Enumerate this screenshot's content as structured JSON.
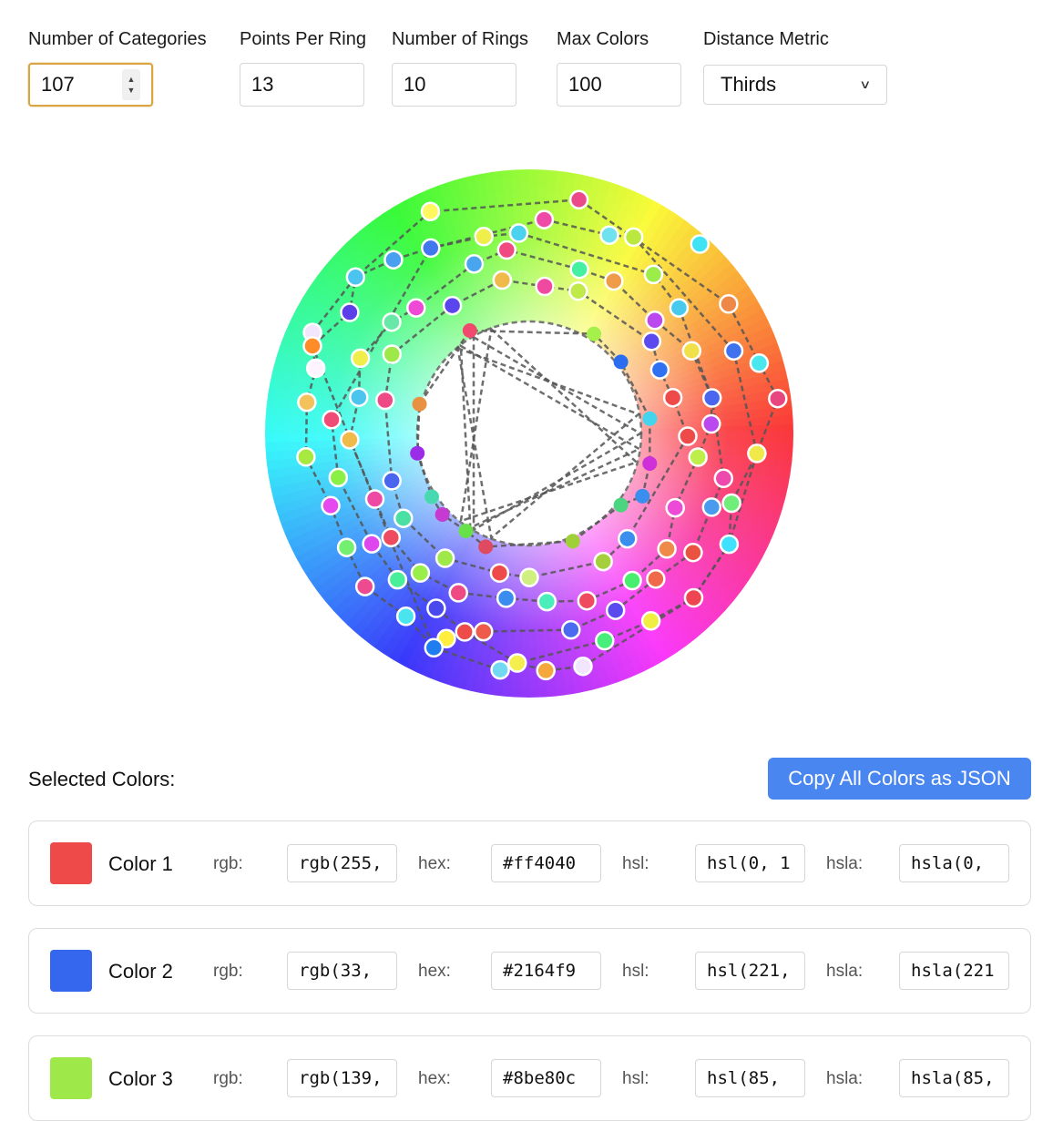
{
  "controls": {
    "categories": {
      "label": "Number of Categories",
      "value": "107"
    },
    "points_per_ring": {
      "label": "Points Per Ring",
      "value": "13"
    },
    "rings": {
      "label": "Number of Rings",
      "value": "10"
    },
    "max_colors": {
      "label": "Max Colors",
      "value": "100"
    },
    "distance_metric": {
      "label": "Distance Metric",
      "selected": "Thirds"
    }
  },
  "wheel": {
    "points": [
      {
        "hue": 283,
        "color": "#f2e6ff",
        "r": 0.905
      },
      {
        "hue": 290,
        "color": "#47ee7a",
        "r": 0.835
      },
      {
        "hue": 324,
        "color": "#eb5341",
        "r": 0.767
      },
      {
        "hue": 341,
        "color": "#6fee7a",
        "r": 0.81
      },
      {
        "hue": 8,
        "color": "#e7477e",
        "r": 0.95
      },
      {
        "hue": 22,
        "color": "#4072ee",
        "r": 0.835
      },
      {
        "hue": 48,
        "color": "#40e3f4",
        "r": 0.965
      },
      {
        "hue": 62,
        "color": "#bbe83f",
        "r": 0.842
      },
      {
        "hue": 78,
        "color": "#eb4a8a",
        "r": 0.905
      },
      {
        "hue": 114,
        "color": "#fff85f",
        "r": 0.92
      },
      {
        "hue": 128,
        "color": "#4aa0f0",
        "r": 0.835
      },
      {
        "hue": 155,
        "color": "#f2e6ff",
        "r": 0.905
      },
      {
        "hue": 248,
        "color": "#ffee40",
        "r": 0.838
      },
      {
        "hue": 252,
        "color": "#ee4b4b",
        "r": 0.79
      },
      {
        "hue": 246,
        "color": "#1f7df0",
        "r": 0.888
      },
      {
        "hue": 236,
        "color": "#49e4ee",
        "r": 0.835
      },
      {
        "hue": 223,
        "color": "#ee4a8f",
        "r": 0.85
      },
      {
        "hue": 212,
        "color": "#74f070",
        "r": 0.815
      },
      {
        "hue": 200,
        "color": "#e64aee",
        "r": 0.8
      },
      {
        "hue": 186,
        "color": "#a7e841",
        "r": 0.85
      },
      {
        "hue": 172,
        "color": "#f4c25a",
        "r": 0.85
      },
      {
        "hue": 163,
        "color": "#fff3ff",
        "r": 0.845
      },
      {
        "hue": 158,
        "color": "#ff8c28",
        "r": 0.885
      },
      {
        "hue": 146,
        "color": "#5b40e9",
        "r": 0.82
      },
      {
        "hue": 138,
        "color": "#4bc4f0",
        "r": 0.885
      },
      {
        "hue": 274,
        "color": "#f4a83c",
        "r": 0.9
      },
      {
        "hue": 267,
        "color": "#f4ee4e",
        "r": 0.87
      },
      {
        "hue": 263,
        "color": "#72d9f2",
        "r": 0.902
      },
      {
        "hue": 303,
        "color": "#f0ee40",
        "r": 0.846
      },
      {
        "hue": 315,
        "color": "#ee4552",
        "r": 0.88
      },
      {
        "hue": 331,
        "color": "#40e0ff",
        "r": 0.865
      },
      {
        "hue": 355,
        "color": "#f0e94a",
        "r": 0.865
      },
      {
        "hue": 17,
        "color": "#4ae8ee",
        "r": 0.91
      },
      {
        "hue": 33,
        "color": "#ee8848",
        "r": 0.9
      },
      {
        "hue": 40,
        "color": "#48c9ee",
        "r": 0.74
      },
      {
        "hue": 52,
        "color": "#9ded4a",
        "r": 0.764
      },
      {
        "hue": 68,
        "color": "#6ee2ee",
        "r": 0.81
      },
      {
        "hue": 86,
        "color": "#f04aa8",
        "r": 0.812
      },
      {
        "hue": 93,
        "color": "#4ad2ee",
        "r": 0.76
      },
      {
        "hue": 103,
        "color": "#f0ee4a",
        "r": 0.765
      },
      {
        "hue": 118,
        "color": "#4278ee",
        "r": 0.795
      },
      {
        "hue": 176,
        "color": "#f04a77",
        "r": 0.75
      },
      {
        "hue": 193,
        "color": "#8af046",
        "r": 0.742
      },
      {
        "hue": 215,
        "color": "#de47ee",
        "r": 0.728
      },
      {
        "hue": 228,
        "color": "#49ee98",
        "r": 0.745
      },
      {
        "hue": 242,
        "color": "#4a49ee",
        "r": 0.75
      },
      {
        "hue": 257,
        "color": "#ee5b4a",
        "r": 0.77
      },
      {
        "hue": 282,
        "color": "#4a6af0",
        "r": 0.76
      },
      {
        "hue": 296,
        "color": "#5b4bee",
        "r": 0.745
      },
      {
        "hue": 311,
        "color": "#ee6a4a",
        "r": 0.73
      },
      {
        "hue": 338,
        "color": "#4a9bee",
        "r": 0.745
      },
      {
        "hue": 347,
        "color": "#ee4aad",
        "r": 0.755
      },
      {
        "hue": 3,
        "color": "#bb47ee",
        "r": 0.69
      },
      {
        "hue": 11,
        "color": "#4a66ee",
        "r": 0.705
      },
      {
        "hue": 27,
        "color": "#f0e04a",
        "r": 0.69
      },
      {
        "hue": 42,
        "color": "#bb47ee",
        "r": 0.64
      },
      {
        "hue": 61,
        "color": "#ee9b4a",
        "r": 0.66
      },
      {
        "hue": 73,
        "color": "#45f0a3",
        "r": 0.65
      },
      {
        "hue": 97,
        "color": "#f04a83",
        "r": 0.7
      },
      {
        "hue": 108,
        "color": "#49a5ee",
        "r": 0.675
      },
      {
        "hue": 132,
        "color": "#ee4ad6",
        "r": 0.64
      },
      {
        "hue": 141,
        "color": "#67e8a7",
        "r": 0.67
      },
      {
        "hue": 156,
        "color": "#f0ee4a",
        "r": 0.7
      },
      {
        "hue": 168,
        "color": "#4bc4ee",
        "r": 0.66
      },
      {
        "hue": 182,
        "color": "#f0ba4a",
        "r": 0.68
      },
      {
        "hue": 203,
        "color": "#ee4aa3",
        "r": 0.635
      },
      {
        "hue": 217,
        "color": "#ee4a60",
        "r": 0.655
      },
      {
        "hue": 232,
        "color": "#9aee4a",
        "r": 0.67
      },
      {
        "hue": 246,
        "color": "#ee4a84",
        "r": 0.66
      },
      {
        "hue": 262,
        "color": "#3a8dee",
        "r": 0.63
      },
      {
        "hue": 276,
        "color": "#49eeba",
        "r": 0.64
      },
      {
        "hue": 289,
        "color": "#ee4a60",
        "r": 0.67
      },
      {
        "hue": 305,
        "color": "#4aee6e",
        "r": 0.68
      },
      {
        "hue": 320,
        "color": "#ee8a4a",
        "r": 0.68
      },
      {
        "hue": 333,
        "color": "#ee4ad8",
        "r": 0.62
      },
      {
        "hue": 352,
        "color": "#bdee4a",
        "r": 0.645
      },
      {
        "hue": 359,
        "color": "#ee4a4a",
        "r": 0.6
      },
      {
        "hue": 14,
        "color": "#ee4a4a",
        "r": 0.56
      },
      {
        "hue": 26,
        "color": "#2f71f0",
        "r": 0.55
      },
      {
        "hue": 37,
        "color": "#5b4bee",
        "r": 0.58
      },
      {
        "hue": 71,
        "color": "#c0e94a",
        "r": 0.57
      },
      {
        "hue": 84,
        "color": "#f04aa0",
        "r": 0.56
      },
      {
        "hue": 100,
        "color": "#f0ba4a",
        "r": 0.59
      },
      {
        "hue": 121,
        "color": "#5b46ee",
        "r": 0.565
      },
      {
        "hue": 150,
        "color": "#9ee84a",
        "r": 0.6
      },
      {
        "hue": 167,
        "color": "#ee4a88",
        "r": 0.56
      },
      {
        "hue": 199,
        "color": "#4a66ee",
        "r": 0.55
      },
      {
        "hue": 214,
        "color": "#4ae0a3",
        "r": 0.575
      },
      {
        "hue": 236,
        "color": "#9ee84a",
        "r": 0.57
      },
      {
        "hue": 258,
        "color": "#ee4a4a",
        "r": 0.54
      },
      {
        "hue": 270,
        "color": "#cff080",
        "r": 0.545
      },
      {
        "hue": 300,
        "color": "#a6cf3e",
        "r": 0.56
      },
      {
        "hue": 313,
        "color": "#3a8fee",
        "r": 0.545
      },
      {
        "hue": 331,
        "color": "#3a8fee",
        "r": 0.49
      },
      {
        "hue": 346,
        "color": "#cf2fd9",
        "r": 0.47
      },
      {
        "hue": 7,
        "color": "#44d4ee",
        "r": 0.46
      },
      {
        "hue": 38,
        "color": "#2c6df0",
        "r": 0.44
      },
      {
        "hue": 57,
        "color": "#a5f04a",
        "r": 0.45
      },
      {
        "hue": 120,
        "color": "#f04a6e",
        "r": 0.45
      },
      {
        "hue": 165,
        "color": "#e89142",
        "r": 0.43
      },
      {
        "hue": 190,
        "color": "#9b2de8",
        "r": 0.43
      },
      {
        "hue": 213,
        "color": "#49d9b0",
        "r": 0.44
      },
      {
        "hue": 223,
        "color": "#c53ad1",
        "r": 0.45
      },
      {
        "hue": 237,
        "color": "#67e04a",
        "r": 0.44
      },
      {
        "hue": 249,
        "color": "#e04a60",
        "r": 0.46
      },
      {
        "hue": 292,
        "color": "#9fd03a",
        "r": 0.44
      },
      {
        "hue": 322,
        "color": "#4ad57e",
        "r": 0.44
      }
    ]
  },
  "selected": {
    "title": "Selected Colors:",
    "copy_label": "Copy All Colors as JSON",
    "field_labels": {
      "rgb": "rgb:",
      "hex": "hex:",
      "hsl": "hsl:",
      "hsla": "hsla:"
    },
    "colors": [
      {
        "name": "Color 1",
        "swatch": "#ee4a4a",
        "rgb": "rgb(255,",
        "hex": "#ff4040",
        "hsl": "hsl(0, 1",
        "hsla": "hsla(0,"
      },
      {
        "name": "Color 2",
        "swatch": "#3566ee",
        "rgb": "rgb(33,",
        "hex": "#2164f9",
        "hsl": "hsl(221,",
        "hsla": "hsla(221"
      },
      {
        "name": "Color 3",
        "swatch": "#9fe84a",
        "rgb": "rgb(139,",
        "hex": "#8be80c",
        "hsl": "hsl(85,",
        "hsla": "hsla(85,"
      }
    ]
  }
}
